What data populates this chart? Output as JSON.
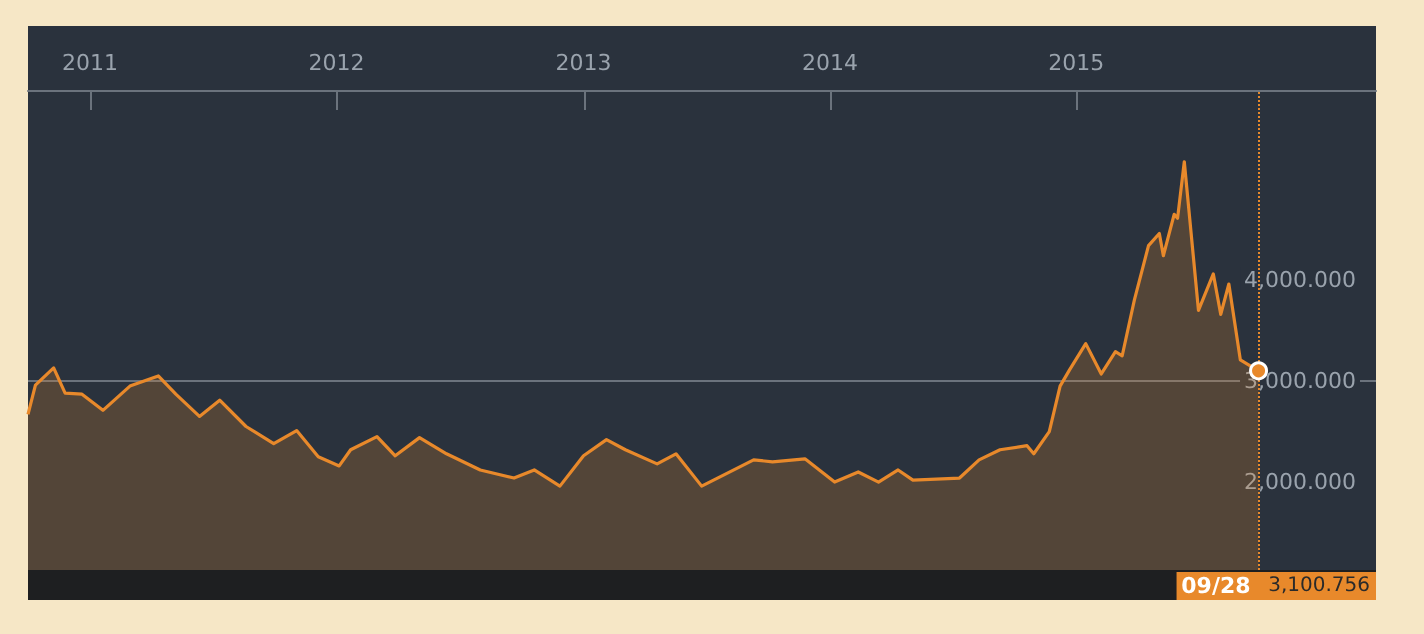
{
  "chart_data": {
    "type": "area",
    "x": [
      "2010-10-01",
      "2010-10-12",
      "2010-11-08",
      "2010-11-25",
      "2010-12-20",
      "2011-01-20",
      "2011-03-01",
      "2011-04-12",
      "2011-05-08",
      "2011-06-12",
      "2011-07-12",
      "2011-08-20",
      "2011-09-30",
      "2011-11-03",
      "2011-12-05",
      "2012-01-05",
      "2012-01-22",
      "2012-03-01",
      "2012-03-28",
      "2012-05-03",
      "2012-06-12",
      "2012-08-01",
      "2012-09-20",
      "2012-10-20",
      "2012-11-27",
      "2013-01-01",
      "2013-02-04",
      "2013-03-04",
      "2013-04-20",
      "2013-05-18",
      "2013-06-25",
      "2013-09-10",
      "2013-10-08",
      "2013-11-25",
      "2014-01-08",
      "2014-02-12",
      "2014-03-14",
      "2014-04-12",
      "2014-05-04",
      "2014-07-12",
      "2014-08-10",
      "2014-09-10",
      "2014-10-20",
      "2014-10-30",
      "2014-11-22",
      "2014-12-08",
      "2014-12-22",
      "2015-01-15",
      "2015-02-07",
      "2015-02-28",
      "2015-03-10",
      "2015-03-28",
      "2015-04-18",
      "2015-05-04",
      "2015-05-10",
      "2015-05-26",
      "2015-05-31",
      "2015-06-10",
      "2015-07-01",
      "2015-07-23",
      "2015-08-03",
      "2015-08-15",
      "2015-09-01",
      "2015-09-28"
    ],
    "series": [
      {
        "color": "#e8892b",
        "values": [
          2670,
          2960,
          3130,
          2880,
          2870,
          2710,
          2950,
          3050,
          2870,
          2650,
          2810,
          2550,
          2380,
          2510,
          2250,
          2160,
          2320,
          2450,
          2260,
          2440,
          2280,
          2120,
          2040,
          2120,
          1960,
          2260,
          2420,
          2320,
          2180,
          2280,
          1960,
          2220,
          2200,
          2230,
          2000,
          2100,
          2000,
          2120,
          2020,
          2040,
          2220,
          2320,
          2360,
          2280,
          2500,
          2950,
          3110,
          3370,
          3070,
          3290,
          3250,
          3800,
          4340,
          4460,
          4240,
          4650,
          4610,
          5170,
          3700,
          4060,
          3660,
          3960,
          3210,
          3100.756
        ]
      }
    ],
    "xlim": [
      "2010-10-01",
      "2016-03-20"
    ],
    "xticks": [
      "2011",
      "2012",
      "2013",
      "2014",
      "2015"
    ],
    "ylim": [
      1130,
      5880
    ],
    "yticks": [
      {
        "value": 2000,
        "label": "2,000.000"
      },
      {
        "value": 3000,
        "label": "3,000.000"
      },
      {
        "value": 4000,
        "label": "4,000.000"
      }
    ],
    "grid": "y",
    "ref_lines": [
      {
        "axis": "x",
        "value": "2015-09-28",
        "label": "09/28",
        "color": "#e8892b",
        "line_style": "dotted"
      }
    ],
    "annotations": [
      "3,100.756"
    ]
  }
}
